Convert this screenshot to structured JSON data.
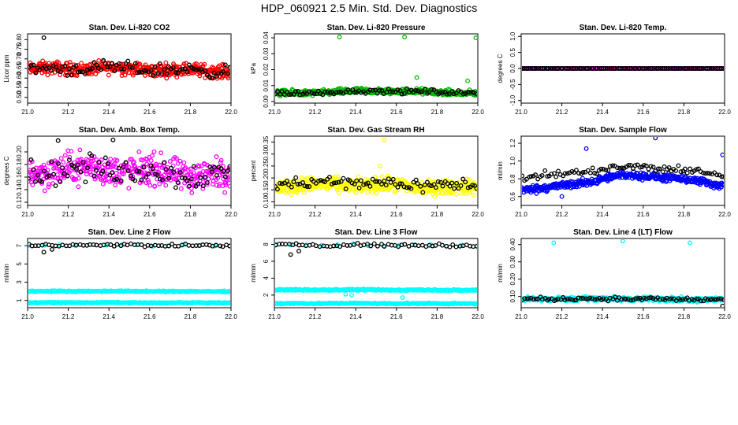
{
  "page": {
    "title": "HDP_060921  2.5 Min. Std. Dev. Diagnostics"
  },
  "chart_data": [
    {
      "id": "co2",
      "type": "scatter",
      "title": "Stan. Dev. Li-820 CO2",
      "xlabel": "",
      "ylabel": "Licor ppm",
      "xlim": [
        21.0,
        22.0
      ],
      "ylim": [
        0.47,
        0.83
      ],
      "xticks": [
        "21.0",
        "21.2",
        "21.4",
        "21.6",
        "21.8",
        "22.0"
      ],
      "yticks": [
        "0.50",
        "0.55",
        "0.60",
        "0.65",
        "0.70",
        "0.75",
        "0.80"
      ],
      "series": [
        {
          "name": "primary",
          "color": "#ff0000",
          "shape": "circle",
          "n": 420,
          "base": 0.645,
          "trend": 0.0,
          "spread": 0.11,
          "outliers": []
        },
        {
          "name": "secondary",
          "color": "#000000",
          "shape": "circle",
          "n": 90,
          "base": 0.645,
          "trend": 0.0,
          "spread": 0.11,
          "outliers": [
            [
              21.08,
              0.81
            ]
          ]
        }
      ]
    },
    {
      "id": "pressure",
      "type": "scatter",
      "title": "Stan. Dev. Li-820 Pressure",
      "xlabel": "",
      "ylabel": "kPa",
      "xlim": [
        21.0,
        22.0
      ],
      "ylim": [
        -0.001,
        0.0425
      ],
      "xticks": [
        "21.0",
        "21.2",
        "21.4",
        "21.6",
        "21.8",
        "22.0"
      ],
      "yticks": [
        "0.00",
        "0.01",
        "0.02",
        "0.03",
        "0.04"
      ],
      "series": [
        {
          "name": "primary",
          "color": "#00bb00",
          "shape": "circle",
          "n": 420,
          "base": 0.005,
          "trend": 0.002,
          "spread": 0.006,
          "outliers": [
            [
              21.32,
              0.0405
            ],
            [
              21.64,
              0.0405
            ],
            [
              21.99,
              0.04
            ],
            [
              21.7,
              0.015
            ],
            [
              21.95,
              0.013
            ]
          ]
        },
        {
          "name": "secondary",
          "color": "#000000",
          "shape": "circle",
          "n": 90,
          "base": 0.005,
          "trend": 0.002,
          "spread": 0.005,
          "outliers": []
        }
      ]
    },
    {
      "id": "licortemp",
      "type": "scatter",
      "title": "Stan. Dev. Li-820 Temp.",
      "xlabel": "",
      "ylabel": "degrees C",
      "xlim": [
        21.0,
        22.0
      ],
      "ylim": [
        -1.08,
        1.08
      ],
      "xticks": [
        "21.0",
        "21.2",
        "21.4",
        "21.6",
        "21.8",
        "22.0"
      ],
      "yticks": [
        "-1.0",
        "-0.5",
        "0.0",
        "0.5",
        "1.0"
      ],
      "series": [
        {
          "name": "primary",
          "color": "#ff00ff",
          "shape": "circle",
          "n": 110,
          "base": 0.0,
          "trend": 0.0,
          "spread": 0.0,
          "outliers": []
        },
        {
          "name": "secondary",
          "color": "#000000",
          "shape": "circle",
          "n": 100,
          "base": 0.0,
          "trend": 0.0,
          "spread": 0.0,
          "outliers": []
        }
      ]
    },
    {
      "id": "boxtemp",
      "type": "scatter",
      "title": "Stan. Dev. Amb. Box Temp.",
      "xlabel": "",
      "ylabel": "degrees C",
      "xlim": [
        21.0,
        22.0
      ],
      "ylim": [
        0.115,
        0.225
      ],
      "xticks": [
        "21.0",
        "21.2",
        "21.4",
        "21.6",
        "21.8",
        "22.0"
      ],
      "yticks": [
        "0.12",
        "0.14",
        "0.16",
        "0.18",
        "0.20"
      ],
      "series": [
        {
          "name": "primary",
          "color": "#ff00ff",
          "shape": "circle",
          "n": 420,
          "base": 0.168,
          "trend": 0.0,
          "spread": 0.08,
          "outliers": []
        },
        {
          "name": "secondary",
          "color": "#000000",
          "shape": "circle",
          "n": 90,
          "base": 0.168,
          "trend": 0.0,
          "spread": 0.07,
          "outliers": [
            [
              21.15,
              0.218
            ],
            [
              21.42,
              0.219
            ]
          ]
        }
      ]
    },
    {
      "id": "gasrh",
      "type": "scatter",
      "title": "Stan. Dev. Gas Stream RH",
      "xlabel": "",
      "ylabel": "percent",
      "xlim": [
        21.0,
        22.0
      ],
      "ylim": [
        0.085,
        0.375
      ],
      "xticks": [
        "21.0",
        "21.2",
        "21.4",
        "21.6",
        "21.8",
        "22.0"
      ],
      "yticks": [
        "0.10",
        "0.15",
        "0.20",
        "0.25",
        "0.30",
        "0.35"
      ],
      "series": [
        {
          "name": "primary",
          "color": "#ffff00",
          "shape": "circle",
          "n": 420,
          "base": 0.165,
          "trend": 0.0,
          "spread": 0.1,
          "outliers": [
            [
              21.54,
              0.36
            ],
            [
              21.52,
              0.25
            ]
          ]
        },
        {
          "name": "secondary",
          "color": "#000000",
          "shape": "circle",
          "n": 90,
          "base": 0.175,
          "trend": 0.0,
          "spread": 0.09,
          "outliers": []
        }
      ]
    },
    {
      "id": "sampleflow",
      "type": "scatter",
      "title": "Stan. Dev. Sample Flow",
      "xlabel": "",
      "ylabel": "ml/min",
      "xlim": [
        21.0,
        22.0
      ],
      "ylim": [
        0.5,
        1.28
      ],
      "xticks": [
        "21.0",
        "21.2",
        "21.4",
        "21.6",
        "21.8",
        "22.0"
      ],
      "yticks": [
        "0.6",
        "0.8",
        "1.0",
        "1.2"
      ],
      "series": [
        {
          "name": "primary",
          "color": "#0000ff",
          "shape": "circle",
          "n": 430,
          "base": 0.68,
          "trend": 0.22,
          "spread": 0.14,
          "outliers": [
            [
              21.32,
              1.14
            ],
            [
              21.66,
              1.26
            ],
            [
              21.99,
              1.07
            ],
            [
              21.2,
              0.6
            ]
          ]
        },
        {
          "name": "secondary",
          "color": "#000000",
          "shape": "circle",
          "n": 90,
          "base": 0.82,
          "trend": 0.15,
          "spread": 0.14,
          "outliers": []
        }
      ]
    },
    {
      "id": "line2",
      "type": "scatter",
      "title": "Stan. Dev. Line 2 Flow",
      "xlabel": "",
      "ylabel": "ml/min",
      "xlim": [
        21.0,
        22.0
      ],
      "ylim": [
        0.2,
        7.8
      ],
      "xticks": [
        "21.0",
        "21.2",
        "21.4",
        "21.6",
        "21.8",
        "22.0"
      ],
      "yticks": [
        "1",
        "3",
        "5",
        "7"
      ],
      "series": [
        {
          "name": "band-high",
          "color": "#00ffff",
          "shape": "circle",
          "n": 260,
          "base": 2.0,
          "trend": 0.0,
          "spread": 0.22,
          "outliers": []
        },
        {
          "name": "band-low",
          "color": "#00ffff",
          "shape": "circle",
          "n": 260,
          "base": 0.75,
          "trend": 0.0,
          "spread": 0.18,
          "outliers": []
        },
        {
          "name": "top-cyan",
          "color": "#00ffff",
          "shape": "circle",
          "n": 14,
          "base": 7.05,
          "trend": 0.0,
          "spread": 0.4,
          "outliers": []
        },
        {
          "name": "secondary",
          "color": "#000000",
          "shape": "circle",
          "n": 60,
          "base": 7.05,
          "trend": 0.0,
          "spread": 0.5,
          "outliers": [
            [
              21.08,
              6.3
            ],
            [
              21.12,
              6.6
            ]
          ]
        }
      ]
    },
    {
      "id": "line3",
      "type": "scatter",
      "title": "Stan. Dev. Line 3 Flow",
      "xlabel": "",
      "ylabel": "ml/min",
      "xlim": [
        21.0,
        22.0
      ],
      "ylim": [
        0.5,
        8.7
      ],
      "xticks": [
        "21.0",
        "21.2",
        "21.4",
        "21.6",
        "21.8",
        "22.0"
      ],
      "yticks": [
        "2",
        "4",
        "6",
        "8"
      ],
      "series": [
        {
          "name": "band-high",
          "color": "#00ffff",
          "shape": "circle",
          "n": 260,
          "base": 2.6,
          "trend": 0.0,
          "spread": 0.3,
          "outliers": [
            [
              21.35,
              2.1
            ],
            [
              21.38,
              2.0
            ],
            [
              21.63,
              1.7
            ]
          ]
        },
        {
          "name": "band-low",
          "color": "#00ffff",
          "shape": "circle",
          "n": 260,
          "base": 1.0,
          "trend": 0.0,
          "spread": 0.22,
          "outliers": []
        },
        {
          "name": "top-cyan",
          "color": "#00ffff",
          "shape": "circle",
          "n": 14,
          "base": 7.9,
          "trend": 0.0,
          "spread": 0.5,
          "outliers": []
        },
        {
          "name": "secondary",
          "color": "#000000",
          "shape": "circle",
          "n": 60,
          "base": 7.9,
          "trend": 0.0,
          "spread": 0.6,
          "outliers": [
            [
              21.08,
              6.8
            ],
            [
              21.12,
              7.2
            ]
          ]
        }
      ]
    },
    {
      "id": "line4",
      "type": "scatter",
      "title": "Stan. Dev. Line 4 (LT) Flow",
      "xlabel": "",
      "ylabel": "ml/min",
      "xlim": [
        21.0,
        22.0
      ],
      "ylim": [
        0.035,
        0.435
      ],
      "xticks": [
        "21.0",
        "21.2",
        "21.4",
        "21.6",
        "21.8",
        "22.0"
      ],
      "yticks": [
        "0.10",
        "0.20",
        "0.30",
        "0.40"
      ],
      "series": [
        {
          "name": "primary",
          "color": "#00ffff",
          "shape": "circle",
          "n": 420,
          "base": 0.085,
          "trend": 0.0,
          "spread": 0.04,
          "outliers": [
            [
              21.16,
              0.41
            ],
            [
              21.5,
              0.42
            ],
            [
              21.83,
              0.41
            ]
          ]
        },
        {
          "name": "secondary",
          "color": "#000000",
          "shape": "circle",
          "n": 90,
          "base": 0.085,
          "trend": 0.0,
          "spread": 0.035,
          "outliers": [
            [
              21.99,
              0.045
            ]
          ]
        }
      ]
    }
  ]
}
